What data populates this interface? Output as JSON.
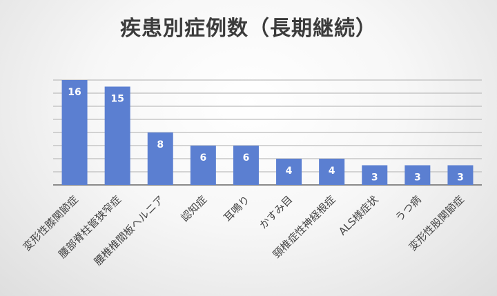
{
  "chart_data": {
    "type": "bar",
    "title": "疾患別症例数（長期継続）",
    "categories": [
      "変形性膝関節症",
      "腰部脊柱管狭窄症",
      "腰椎椎間板ヘルニア",
      "認知症",
      "耳鳴り",
      "かすみ目",
      "頸椎症性神経根症",
      "ALS様症状",
      "うつ病",
      "変形性股関節症"
    ],
    "values": [
      16,
      15,
      8,
      6,
      6,
      4,
      4,
      3,
      3,
      3
    ],
    "data_labels": [
      "16",
      "15",
      "8",
      "6",
      "6",
      "4",
      "4",
      "3",
      "3",
      "3"
    ],
    "ylim": [
      0,
      16
    ],
    "grid": true,
    "colors": {
      "bar": "#5b7fd1"
    }
  }
}
